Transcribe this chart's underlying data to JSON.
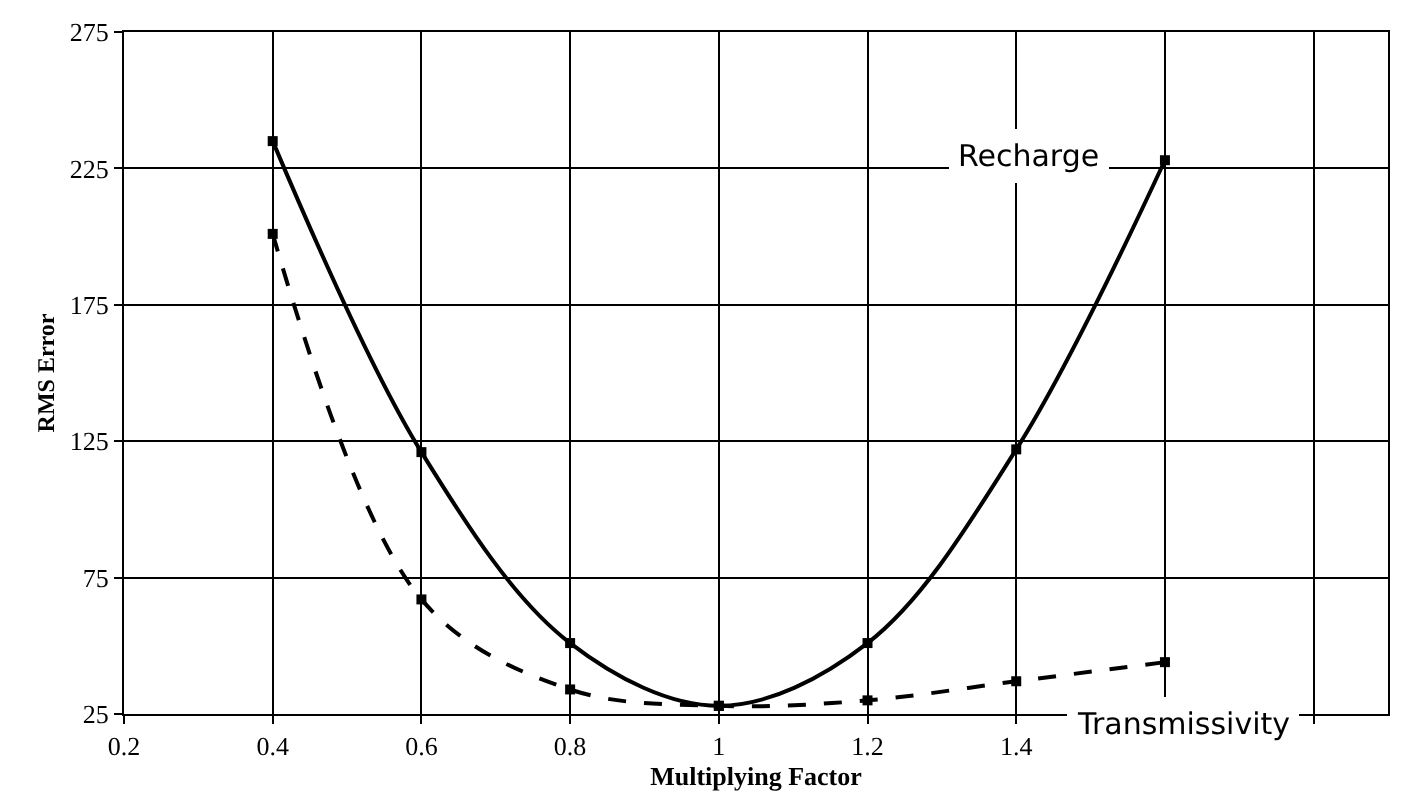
{
  "chart_data": {
    "type": "line",
    "xlabel": "Multiplying Factor",
    "ylabel": "RMS Error",
    "x": [
      0.4,
      0.6,
      0.8,
      1.0,
      1.2,
      1.4,
      1.6
    ],
    "series": [
      {
        "name": "Recharge",
        "color": "#000000",
        "line_style": "solid",
        "values": [
          235,
          121,
          51,
          28,
          51,
          122,
          228
        ]
      },
      {
        "name": "Transmissivity",
        "color": "#000000",
        "line_style": "dashed",
        "values": [
          201,
          67,
          34,
          28,
          30,
          37,
          44
        ]
      }
    ],
    "xlim": [
      0.2,
      1.9
    ],
    "xticks": [
      0.2,
      0.4,
      0.6,
      0.8,
      1,
      1.2,
      1.4,
      {
        "value": 1.6,
        "label": null
      },
      {
        "value": 1.8,
        "label": null
      }
    ],
    "ylim": [
      25,
      275
    ],
    "yticks": [
      25,
      75,
      125,
      175,
      225,
      275
    ],
    "grid": true,
    "marker": "square",
    "legend": false
  }
}
